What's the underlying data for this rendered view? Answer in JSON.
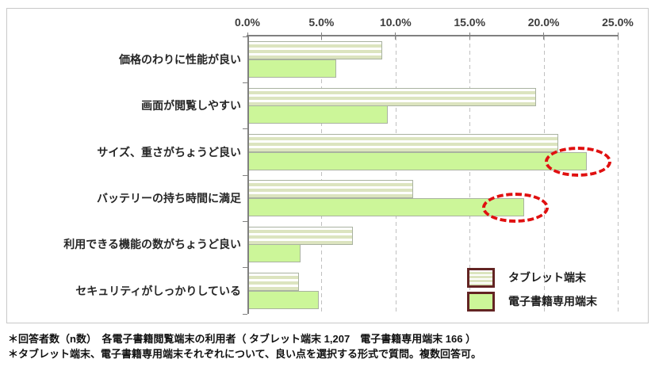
{
  "chart_data": {
    "type": "bar",
    "orientation": "horizontal",
    "title": "",
    "xlabel": "",
    "ylabel": "",
    "x_axis": {
      "min": 0,
      "max": 25,
      "unit": "%",
      "ticks": [
        "0.0%",
        "5.0%",
        "10.0%",
        "15.0%",
        "20.0%",
        "25.0%"
      ],
      "grid": "dashed-vertical"
    },
    "categories": [
      "価格のわりに性能が良い",
      "画面が閲覧しやすい",
      "サイズ、重さがちょうど良い",
      "バッテリーの持ち時間に満足",
      "利用できる機能の数がちょうど良い",
      "セキュリティがしっかりしている"
    ],
    "series": [
      {
        "name": "タブレット端末",
        "style": "striped",
        "values": [
          9.1,
          19.5,
          21.0,
          11.2,
          7.1,
          3.5
        ]
      },
      {
        "name": "電子書籍専用端末",
        "style": "solid",
        "values": [
          6.0,
          9.5,
          22.9,
          18.7,
          3.6,
          4.8
        ]
      }
    ],
    "highlights": [
      {
        "series_index": 1,
        "category_index": 2,
        "series": "電子書籍専用端末",
        "category": "サイズ、重さがちょうど良い",
        "shape": "red-dashed-ellipse"
      },
      {
        "series_index": 1,
        "category_index": 3,
        "series": "電子書籍専用端末",
        "category": "バッテリーの持ち時間に満足",
        "shape": "red-dashed-ellipse"
      }
    ],
    "legend_position": "inside-bottom-right"
  },
  "colors": {
    "bar_solid": "#ccf699",
    "bar_stripe": "#dce4bf",
    "bar_border": "#a9b2a0",
    "axis": "#808080",
    "gridline": "#c0c0c0",
    "legend_border": "#632423",
    "highlight_ellipse": "#e01010",
    "frame_border": "#c8c8c8"
  },
  "footnotes": [
    "＊回答者数（n数）　各電子書籍閲覧端末の利用者（ タブレット端末 1,207　電子書籍専用端末 166 ）",
    "＊タブレット端末、電子書籍専用端末それぞれについて、良い点を選択する形式で質問。複数回答可。"
  ]
}
